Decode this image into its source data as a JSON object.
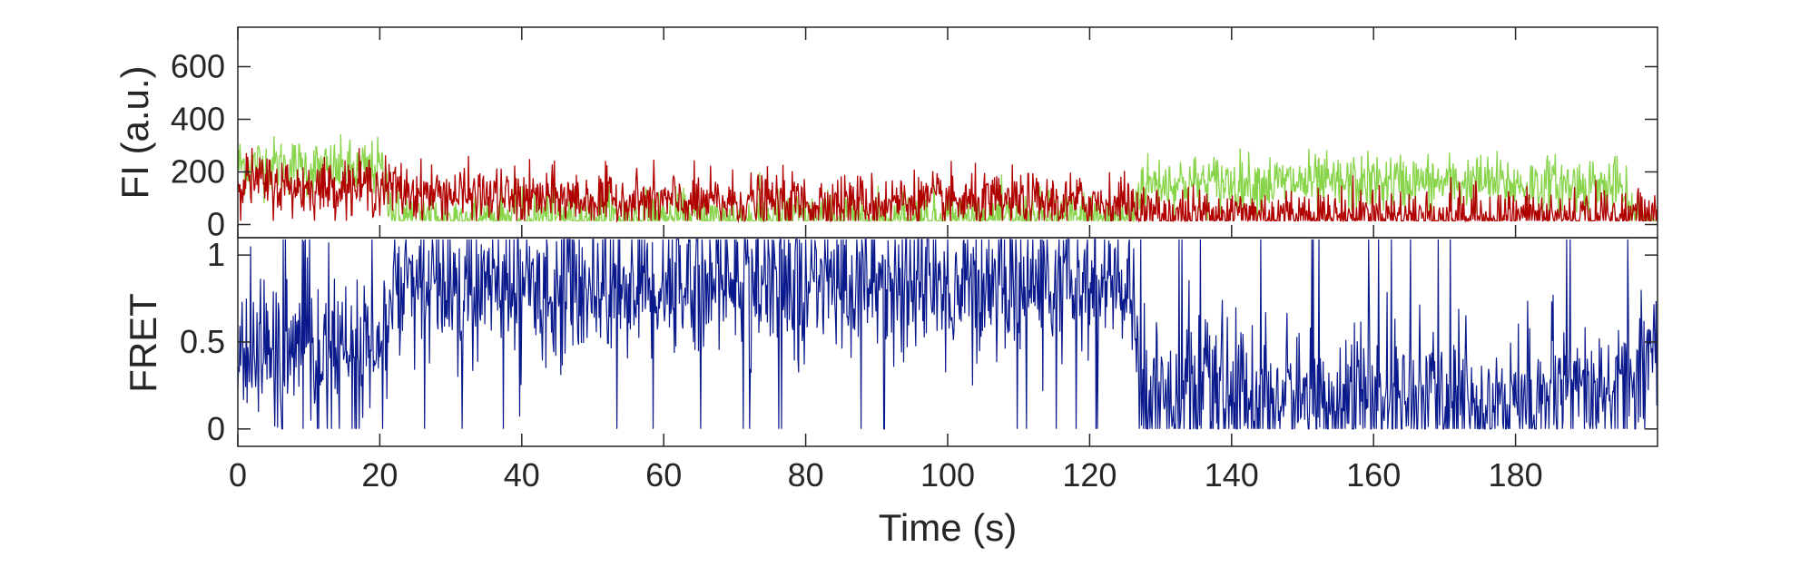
{
  "chart_data": [
    {
      "type": "line",
      "panel": "top",
      "xlabel": "",
      "ylabel": "FI (a.u.)",
      "xlim": [
        0,
        200
      ],
      "ylim": [
        -50,
        750
      ],
      "yticks": [
        0,
        200,
        400,
        600
      ],
      "ytick_labels": [
        "0",
        "200",
        "400",
        "600"
      ],
      "xticks": [],
      "colors": {
        "donor": "#88d44a",
        "acceptor": "#b00000"
      },
      "series": [
        {
          "color_key": "donor",
          "x": [
            0,
            5,
            10,
            15,
            20,
            21,
            22,
            25,
            30,
            35,
            40,
            45,
            50,
            55,
            60,
            65,
            70,
            75,
            80,
            85,
            90,
            95,
            100,
            105,
            110,
            115,
            120,
            125,
            126,
            127,
            130,
            135,
            140,
            145,
            150,
            155,
            160,
            165,
            170,
            175,
            180,
            185,
            190,
            195,
            196,
            200
          ],
          "y": [
            230,
            225,
            215,
            205,
            215,
            160,
            25,
            30,
            25,
            20,
            22,
            25,
            20,
            20,
            18,
            15,
            15,
            20,
            20,
            15,
            15,
            20,
            20,
            18,
            15,
            18,
            20,
            20,
            25,
            150,
            160,
            155,
            160,
            155,
            160,
            150,
            160,
            160,
            155,
            160,
            150,
            150,
            150,
            140,
            40,
            15
          ]
        },
        {
          "color_key": "acceptor",
          "x": [
            0,
            5,
            10,
            15,
            20,
            21,
            22,
            25,
            30,
            35,
            40,
            45,
            50,
            55,
            60,
            65,
            70,
            75,
            80,
            85,
            90,
            95,
            100,
            105,
            110,
            115,
            120,
            125,
            126,
            127,
            130,
            135,
            140,
            145,
            150,
            155,
            160,
            165,
            170,
            175,
            180,
            185,
            190,
            195,
            200
          ],
          "y": [
            180,
            150,
            140,
            145,
            150,
            140,
            135,
            120,
            115,
            105,
            100,
            100,
            95,
            90,
            85,
            80,
            85,
            85,
            80,
            85,
            80,
            90,
            85,
            80,
            85,
            80,
            85,
            80,
            70,
            40,
            35,
            35,
            40,
            35,
            35,
            30,
            35,
            30,
            30,
            30,
            25,
            30,
            25,
            25,
            20
          ]
        }
      ]
    },
    {
      "type": "line",
      "panel": "bottom",
      "xlabel": "Time (s)",
      "ylabel": "FRET",
      "xlim": [
        0,
        200
      ],
      "ylim": [
        -0.1,
        1.1
      ],
      "yticks": [
        0,
        0.5,
        1
      ],
      "ytick_labels": [
        "0",
        "0.5",
        "1"
      ],
      "xticks": [
        0,
        20,
        40,
        60,
        80,
        100,
        120,
        140,
        160,
        180
      ],
      "xtick_labels": [
        "0",
        "20",
        "40",
        "60",
        "80",
        "100",
        "120",
        "140",
        "160",
        "180"
      ],
      "colors": {
        "fret": "#0a1a8c"
      },
      "series": [
        {
          "color_key": "fret",
          "x": [
            0,
            5,
            10,
            15,
            20,
            21,
            22,
            25,
            30,
            35,
            40,
            45,
            50,
            55,
            60,
            65,
            70,
            75,
            80,
            85,
            90,
            95,
            100,
            105,
            110,
            115,
            120,
            125,
            126,
            127,
            130,
            135,
            140,
            145,
            150,
            155,
            160,
            165,
            170,
            175,
            180,
            185,
            190,
            195,
            200
          ],
          "y": [
            0.45,
            0.45,
            0.44,
            0.43,
            0.42,
            0.55,
            0.82,
            0.8,
            0.81,
            0.8,
            0.82,
            0.8,
            0.83,
            0.82,
            0.84,
            0.85,
            0.86,
            0.83,
            0.82,
            0.85,
            0.85,
            0.82,
            0.8,
            0.82,
            0.85,
            0.82,
            0.8,
            0.8,
            0.7,
            0.22,
            0.2,
            0.2,
            0.18,
            0.18,
            0.17,
            0.18,
            0.17,
            0.16,
            0.16,
            0.17,
            0.16,
            0.17,
            0.16,
            0.2,
            0.5
          ]
        }
      ]
    }
  ]
}
